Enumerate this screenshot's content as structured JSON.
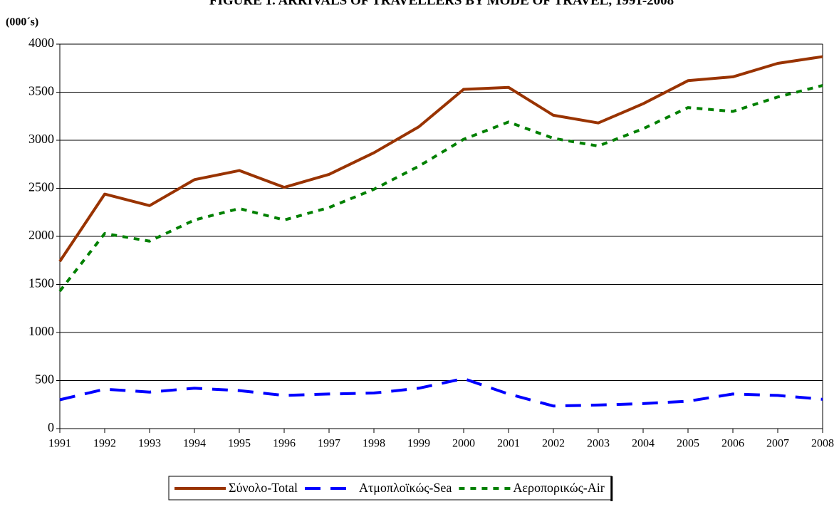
{
  "chart_data": {
    "type": "line",
    "title": "FIGURE        1.  ARRIVALS OF TRAVELLERS BY MODE OF TRAVEL, 1991-2008",
    "y_label": "(000´s)",
    "categories": [
      "1991",
      "1992",
      "1993",
      "1994",
      "1995",
      "1996",
      "1997",
      "1998",
      "1999",
      "2000",
      "2001",
      "2002",
      "2003",
      "2004",
      "2005",
      "2006",
      "2007",
      "2008"
    ],
    "series": [
      {
        "name": "Σύνολο-Total",
        "color": "#993300",
        "dash": "solid",
        "values": [
          1740,
          2440,
          2320,
          2590,
          2685,
          2510,
          2645,
          2870,
          3140,
          3530,
          3550,
          3260,
          3180,
          3380,
          3620,
          3660,
          3800,
          3870
        ]
      },
      {
        "name": "Ατμοπλοϊκώς-Sea",
        "color": "#0000ff",
        "dash": "long-dash",
        "values": [
          300,
          410,
          380,
          420,
          395,
          345,
          360,
          370,
          420,
          520,
          360,
          235,
          245,
          260,
          285,
          360,
          345,
          305
        ]
      },
      {
        "name": "Αεροπορικώς-Air",
        "color": "#008000",
        "dash": "short-dash",
        "values": [
          1430,
          2030,
          1950,
          2170,
          2290,
          2170,
          2300,
          2490,
          2730,
          3010,
          3190,
          3020,
          2940,
          3120,
          3340,
          3300,
          3450,
          3570
        ]
      }
    ],
    "ylim": [
      0,
      4000
    ],
    "yticks": [
      0,
      500,
      1000,
      1500,
      2000,
      2500,
      3000,
      3500,
      4000
    ],
    "grid": true,
    "legend": "bottom"
  }
}
